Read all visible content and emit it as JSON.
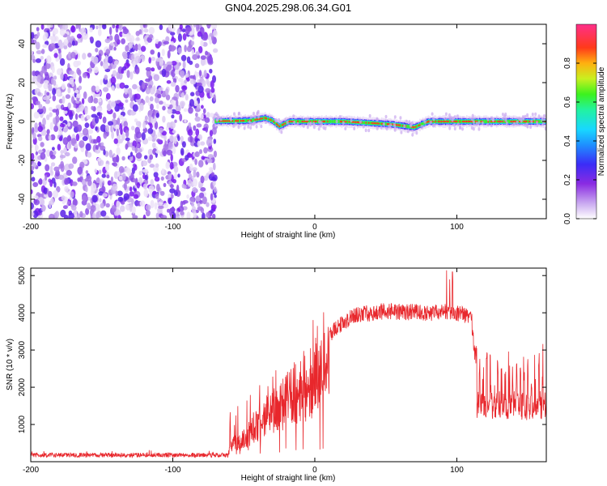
{
  "title": "GN04.2025.298.06.34.G01",
  "colors": {
    "snr_line": "#e8272c",
    "frame": "#000000",
    "colormap": [
      "#ffffff",
      "#d8c8f0",
      "#a070e0",
      "#7a1cf0",
      "#3b2cf7",
      "#2f6cff",
      "#18d8ff",
      "#22f2a0",
      "#3cf21e",
      "#e0f020",
      "#ff9a10",
      "#ff2a2a",
      "#ff2f8a"
    ]
  },
  "chart_data": [
    {
      "type": "heatmap",
      "title": "GN04.2025.298.06.34.G01",
      "xlabel": "Height of straight line (km)",
      "ylabel": "Frequency (Hz)",
      "xlim": [
        -200,
        163
      ],
      "ylim": [
        -50,
        50
      ],
      "xticks": [
        -200,
        -100,
        0,
        100
      ],
      "yticks": [
        -40,
        -20,
        0,
        20,
        40
      ],
      "noise_region_x": [
        -200,
        -70
      ],
      "signal_start_x": -70,
      "signal_ridge": [
        {
          "x": -70,
          "y": 0.2
        },
        {
          "x": -55,
          "y": 0.3
        },
        {
          "x": -45,
          "y": 0.5
        },
        {
          "x": -35,
          "y": 1.8
        },
        {
          "x": -30,
          "y": 0.5
        },
        {
          "x": -25,
          "y": -2.5
        },
        {
          "x": -18,
          "y": 0
        },
        {
          "x": 0,
          "y": 0
        },
        {
          "x": 20,
          "y": 0
        },
        {
          "x": 40,
          "y": -0.8
        },
        {
          "x": 55,
          "y": -1.5
        },
        {
          "x": 70,
          "y": -3
        },
        {
          "x": 80,
          "y": 0
        },
        {
          "x": 100,
          "y": 0
        },
        {
          "x": 130,
          "y": 0
        },
        {
          "x": 163,
          "y": 0
        }
      ],
      "colorbar": {
        "label": "Normalized spectral amplitude",
        "range": [
          0,
          1
        ],
        "ticks": [
          "0.0",
          "0.2",
          "0.4",
          "0.6",
          "0.8"
        ]
      }
    },
    {
      "type": "line",
      "xlabel": "Height of straight line (km)",
      "ylabel": "SNR (10 * v/v)",
      "xlim": [
        -200,
        163
      ],
      "ylim": [
        0,
        5200
      ],
      "xticks": [
        -200,
        -100,
        0,
        100
      ],
      "yticks": [
        1000,
        2000,
        3000,
        4000,
        5000
      ],
      "series": [
        {
          "name": "SNR",
          "envelope": [
            {
              "x": -200,
              "y": 150
            },
            {
              "x": -61,
              "y": 150
            },
            {
              "x": -60,
              "y": 500
            },
            {
              "x": -50,
              "y": 800
            },
            {
              "x": -40,
              "y": 1200
            },
            {
              "x": -30,
              "y": 1700
            },
            {
              "x": -20,
              "y": 2100
            },
            {
              "x": -10,
              "y": 2500
            },
            {
              "x": 0,
              "y": 2900
            },
            {
              "x": 10,
              "y": 3400
            },
            {
              "x": 20,
              "y": 3750
            },
            {
              "x": 30,
              "y": 3950
            },
            {
              "x": 50,
              "y": 4050
            },
            {
              "x": 80,
              "y": 4000
            },
            {
              "x": 95,
              "y": 4050
            },
            {
              "x": 110,
              "y": 3900
            },
            {
              "x": 113,
              "y": 2900
            },
            {
              "x": 120,
              "y": 2300
            },
            {
              "x": 140,
              "y": 2000
            },
            {
              "x": 163,
              "y": 1700
            }
          ],
          "peak": {
            "x": 97,
            "y": 5100
          }
        }
      ]
    }
  ]
}
